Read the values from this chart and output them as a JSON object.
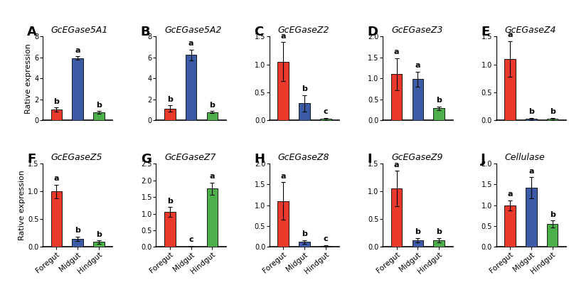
{
  "panels": [
    {
      "label": "A",
      "title": "GcEGase5A1",
      "ylim": [
        0,
        8
      ],
      "yticks": [
        0,
        2,
        4,
        6,
        8
      ],
      "values": [
        1.0,
        5.95,
        0.75
      ],
      "errors": [
        0.22,
        0.15,
        0.12
      ],
      "sig": [
        "b",
        "a",
        "b"
      ],
      "colors": [
        "#E8392A",
        "#3B5BA5",
        "#4DAF4A"
      ],
      "ylabel": "Rative expression",
      "show_xticks": false
    },
    {
      "label": "B",
      "title": "GcEGase5A2",
      "ylim": [
        0,
        8
      ],
      "yticks": [
        0,
        2,
        4,
        6,
        8
      ],
      "values": [
        1.1,
        6.25,
        0.75
      ],
      "errors": [
        0.3,
        0.5,
        0.1
      ],
      "sig": [
        "b",
        "a",
        "b"
      ],
      "colors": [
        "#E8392A",
        "#3B5BA5",
        "#4DAF4A"
      ],
      "ylabel": "",
      "show_xticks": false
    },
    {
      "label": "C",
      "title": "GcEGaseZ2",
      "ylim": [
        0,
        1.5
      ],
      "yticks": [
        0.0,
        0.5,
        1.0,
        1.5
      ],
      "values": [
        1.05,
        0.3,
        0.02
      ],
      "errors": [
        0.35,
        0.15,
        0.02
      ],
      "sig": [
        "a",
        "b",
        "c"
      ],
      "colors": [
        "#E8392A",
        "#3B5BA5",
        "#4DAF4A"
      ],
      "ylabel": "",
      "show_xticks": false
    },
    {
      "label": "D",
      "title": "GcEGaseZ3",
      "ylim": [
        0,
        2.0
      ],
      "yticks": [
        0.0,
        0.5,
        1.0,
        1.5,
        2.0
      ],
      "values": [
        1.1,
        0.98,
        0.28
      ],
      "errors": [
        0.38,
        0.18,
        0.05
      ],
      "sig": [
        "a",
        "a",
        "b"
      ],
      "colors": [
        "#E8392A",
        "#3B5BA5",
        "#4DAF4A"
      ],
      "ylabel": "",
      "show_xticks": false
    },
    {
      "label": "E",
      "title": "GcEGaseZ4",
      "ylim": [
        0,
        1.5
      ],
      "yticks": [
        0.0,
        0.5,
        1.0,
        1.5
      ],
      "values": [
        1.1,
        0.02,
        0.02
      ],
      "errors": [
        0.32,
        0.02,
        0.02
      ],
      "sig": [
        "a",
        "b",
        "b"
      ],
      "colors": [
        "#E8392A",
        "#3B5BA5",
        "#4DAF4A"
      ],
      "ylabel": "",
      "show_xticks": false
    },
    {
      "label": "F",
      "title": "GcEGaseZ5",
      "ylim": [
        0,
        1.5
      ],
      "yticks": [
        0.0,
        0.5,
        1.0,
        1.5
      ],
      "values": [
        1.0,
        0.15,
        0.09
      ],
      "errors": [
        0.12,
        0.04,
        0.03
      ],
      "sig": [
        "a",
        "b",
        "b"
      ],
      "colors": [
        "#E8392A",
        "#3B5BA5",
        "#4DAF4A"
      ],
      "ylabel": "Rative expression",
      "show_xticks": true
    },
    {
      "label": "G",
      "title": "GcEGaseZ7",
      "ylim": [
        0,
        2.5
      ],
      "yticks": [
        0.0,
        0.5,
        1.0,
        1.5,
        2.0,
        2.5
      ],
      "values": [
        1.05,
        0.02,
        1.75
      ],
      "errors": [
        0.15,
        0.02,
        0.18
      ],
      "sig": [
        "b",
        "c",
        "a"
      ],
      "colors": [
        "#E8392A",
        "#3B5BA5",
        "#4DAF4A"
      ],
      "ylabel": "",
      "show_xticks": true
    },
    {
      "label": "H",
      "title": "GcEGaseZ8",
      "ylim": [
        0,
        2.0
      ],
      "yticks": [
        0.0,
        0.5,
        1.0,
        1.5,
        2.0
      ],
      "values": [
        1.1,
        0.12,
        0.03
      ],
      "errors": [
        0.45,
        0.05,
        0.02
      ],
      "sig": [
        "a",
        "b",
        "c"
      ],
      "colors": [
        "#E8392A",
        "#3B5BA5",
        "#4DAF4A"
      ],
      "ylabel": "",
      "show_xticks": true
    },
    {
      "label": "I",
      "title": "GcEGaseZ9",
      "ylim": [
        0,
        1.5
      ],
      "yticks": [
        0.0,
        0.5,
        1.0,
        1.5
      ],
      "values": [
        1.05,
        0.12,
        0.12
      ],
      "errors": [
        0.32,
        0.04,
        0.04
      ],
      "sig": [
        "a",
        "b",
        "b"
      ],
      "colors": [
        "#E8392A",
        "#3B5BA5",
        "#4DAF4A"
      ],
      "ylabel": "",
      "show_xticks": true
    },
    {
      "label": "J",
      "title": "Cellulase",
      "ylim": [
        0,
        2.0
      ],
      "yticks": [
        0.0,
        0.5,
        1.0,
        1.5,
        2.0
      ],
      "values": [
        1.0,
        1.42,
        0.55
      ],
      "errors": [
        0.12,
        0.25,
        0.08
      ],
      "sig": [
        "a",
        "a",
        "b"
      ],
      "colors": [
        "#E8392A",
        "#3B5BA5",
        "#4DAF4A"
      ],
      "ylabel": "",
      "show_xticks": true
    }
  ],
  "categories": [
    "Foregut",
    "Midgut",
    "Hindgut"
  ],
  "bar_width": 0.52,
  "background_color": "#ffffff",
  "label_fontsize": 13,
  "title_fontsize": 9,
  "tick_fontsize": 7,
  "sig_fontsize": 8,
  "axis_label_fontsize": 8,
  "xtick_fontsize": 7.5
}
